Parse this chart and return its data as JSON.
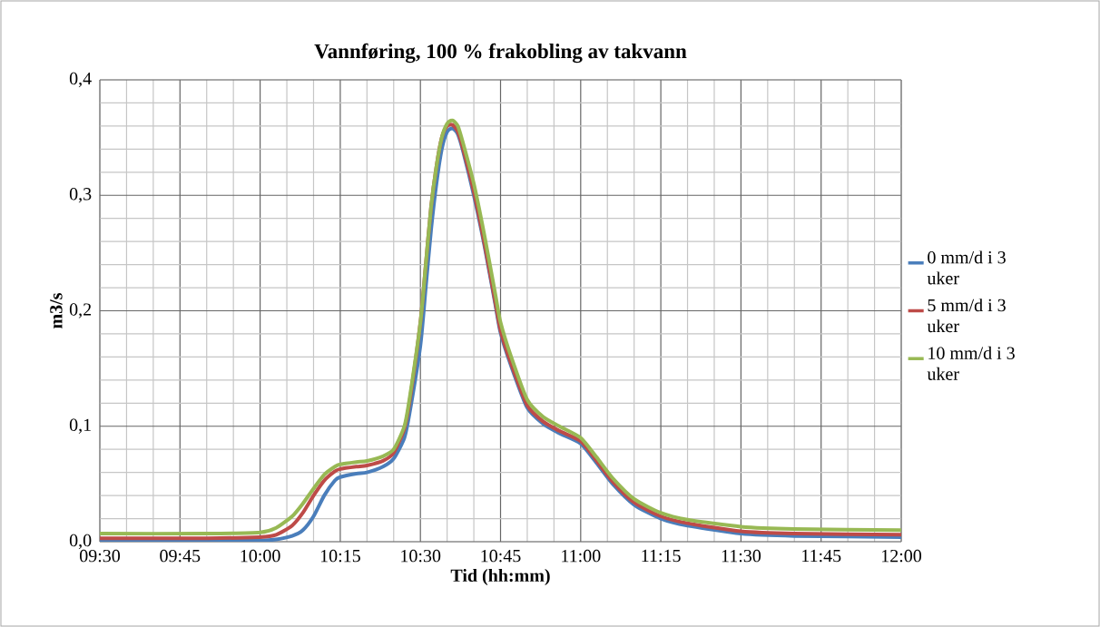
{
  "chart_data": {
    "type": "line",
    "title": "Vannføring, 100 % frakobling av takvann",
    "xlabel": "Tid (hh:mm)",
    "ylabel": "m3/s",
    "x": [
      9.5,
      9.8333,
      10.0,
      10.05,
      10.1,
      10.1333,
      10.1667,
      10.2,
      10.2333,
      10.25,
      10.3,
      10.3333,
      10.3833,
      10.4167,
      10.45,
      10.4667,
      10.5,
      10.5167,
      10.5333,
      10.55,
      10.5667,
      10.5833,
      10.6,
      10.6167,
      10.6333,
      10.6667,
      10.7,
      10.7333,
      10.75,
      10.7833,
      10.8333,
      10.8833,
      10.9333,
      11.0,
      11.05,
      11.1,
      11.1667,
      11.25,
      11.3333,
      11.5,
      11.6667,
      12.0
    ],
    "series": [
      {
        "name": "0 mm/d i 3 uker",
        "color": "#4a7ebb",
        "values": [
          0.001,
          0.001,
          0.001,
          0.002,
          0.005,
          0.01,
          0.022,
          0.04,
          0.053,
          0.056,
          0.059,
          0.06,
          0.065,
          0.072,
          0.09,
          0.112,
          0.17,
          0.22,
          0.27,
          0.31,
          0.34,
          0.355,
          0.358,
          0.353,
          0.338,
          0.3,
          0.256,
          0.206,
          0.181,
          0.152,
          0.116,
          0.102,
          0.094,
          0.085,
          0.068,
          0.05,
          0.032,
          0.02,
          0.014,
          0.007,
          0.005,
          0.004
        ]
      },
      {
        "name": "5 mm/d i 3 uker",
        "color": "#be4b48",
        "values": [
          0.003,
          0.003,
          0.004,
          0.006,
          0.014,
          0.025,
          0.04,
          0.053,
          0.061,
          0.063,
          0.065,
          0.066,
          0.07,
          0.077,
          0.098,
          0.122,
          0.19,
          0.24,
          0.29,
          0.325,
          0.35,
          0.36,
          0.361,
          0.355,
          0.34,
          0.303,
          0.258,
          0.208,
          0.183,
          0.154,
          0.118,
          0.104,
          0.096,
          0.087,
          0.07,
          0.052,
          0.034,
          0.022,
          0.016,
          0.009,
          0.007,
          0.006
        ]
      },
      {
        "name": "10 mm/d i 3 uker",
        "color": "#98b954",
        "values": [
          0.007,
          0.007,
          0.008,
          0.012,
          0.022,
          0.033,
          0.046,
          0.058,
          0.065,
          0.067,
          0.069,
          0.07,
          0.074,
          0.08,
          0.1,
          0.125,
          0.19,
          0.24,
          0.29,
          0.325,
          0.35,
          0.362,
          0.365,
          0.36,
          0.345,
          0.31,
          0.265,
          0.215,
          0.19,
          0.16,
          0.123,
          0.108,
          0.1,
          0.09,
          0.073,
          0.055,
          0.037,
          0.025,
          0.019,
          0.013,
          0.011,
          0.01
        ]
      }
    ],
    "xlim": [
      9.5,
      12.0
    ],
    "ylim": [
      0,
      0.4
    ],
    "xticks": [
      {
        "value": 9.5,
        "label": "09:30"
      },
      {
        "value": 9.75,
        "label": "09:45"
      },
      {
        "value": 10.0,
        "label": "10:00"
      },
      {
        "value": 10.25,
        "label": "10:15"
      },
      {
        "value": 10.5,
        "label": "10:30"
      },
      {
        "value": 10.75,
        "label": "10:45"
      },
      {
        "value": 11.0,
        "label": "11:00"
      },
      {
        "value": 11.25,
        "label": "11:15"
      },
      {
        "value": 11.5,
        "label": "11:30"
      },
      {
        "value": 11.75,
        "label": "11:45"
      },
      {
        "value": 12.0,
        "label": "12:00"
      }
    ],
    "yticks": [
      {
        "value": 0,
        "label": "0,0"
      },
      {
        "value": 0.1,
        "label": "0,1"
      },
      {
        "value": 0.2,
        "label": "0,2"
      },
      {
        "value": 0.3,
        "label": "0,3"
      },
      {
        "value": 0.4,
        "label": "0,4"
      }
    ],
    "grid": true,
    "legend": "right",
    "marker": "none",
    "line_style": "solid"
  }
}
